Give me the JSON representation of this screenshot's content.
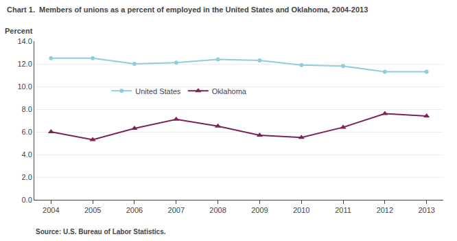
{
  "chart_data": {
    "type": "line",
    "title": "Chart 1.  Members of unions as a percent of employed in the United States and Oklahoma, 2004-2013",
    "y_label": "Percent",
    "source": "Source: U.S. Bureau of Labor Statistics.",
    "x": [
      2004,
      2005,
      2006,
      2007,
      2008,
      2009,
      2010,
      2011,
      2012,
      2013
    ],
    "series": [
      {
        "name": "United States",
        "color": "#92CDDC",
        "marker": "circle",
        "line_style": "solid",
        "values": [
          12.5,
          12.5,
          12.0,
          12.1,
          12.4,
          12.3,
          11.9,
          11.8,
          11.3,
          11.3
        ]
      },
      {
        "name": "Oklahoma",
        "color": "#7B2258",
        "marker": "triangle-up",
        "line_style": "solid",
        "values": [
          6.0,
          5.3,
          6.3,
          7.1,
          6.5,
          5.7,
          5.5,
          6.4,
          7.6,
          7.4
        ]
      }
    ],
    "xlim": [
      2003.6,
      2013.4
    ],
    "xticks": [
      2004,
      2005,
      2006,
      2007,
      2008,
      2009,
      2010,
      2011,
      2012,
      2013
    ],
    "ylim": [
      0.0,
      14.0
    ],
    "yticks": [
      {
        "value": 0,
        "label": "0.0"
      },
      {
        "value": 2,
        "label": "2.0"
      },
      {
        "value": 4,
        "label": "4.0"
      },
      {
        "value": 6,
        "label": "6.0"
      },
      {
        "value": 8,
        "label": "8.0"
      },
      {
        "value": 10,
        "label": "10.0"
      },
      {
        "value": 12,
        "label": "12.0"
      },
      {
        "value": 14,
        "label": "14.0"
      }
    ],
    "grid": true,
    "legend": "upper left"
  }
}
